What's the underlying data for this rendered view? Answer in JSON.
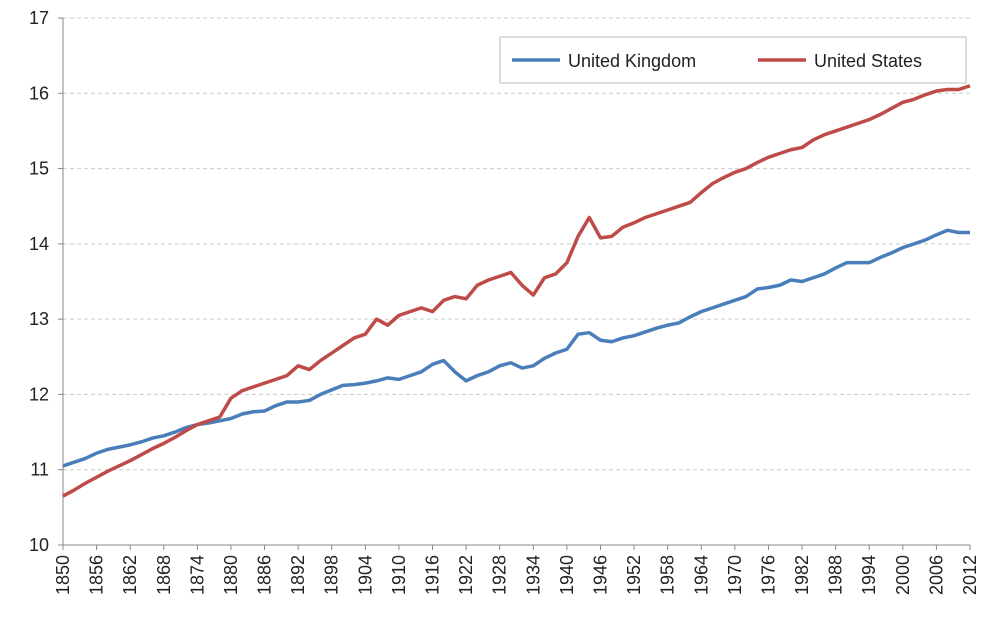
{
  "chart_data": {
    "type": "line",
    "x": [
      1850,
      1852,
      1854,
      1856,
      1858,
      1860,
      1862,
      1864,
      1866,
      1868,
      1870,
      1872,
      1874,
      1876,
      1878,
      1880,
      1882,
      1884,
      1886,
      1888,
      1890,
      1892,
      1894,
      1896,
      1898,
      1900,
      1902,
      1904,
      1906,
      1908,
      1910,
      1912,
      1914,
      1916,
      1918,
      1920,
      1922,
      1924,
      1926,
      1928,
      1930,
      1932,
      1934,
      1936,
      1938,
      1940,
      1942,
      1944,
      1946,
      1948,
      1950,
      1952,
      1954,
      1956,
      1958,
      1960,
      1962,
      1964,
      1966,
      1968,
      1970,
      1972,
      1974,
      1976,
      1978,
      1980,
      1982,
      1984,
      1986,
      1988,
      1990,
      1992,
      1994,
      1996,
      1998,
      2000,
      2002,
      2004,
      2006,
      2008,
      2010,
      2012
    ],
    "series": [
      {
        "name": "United Kingdom",
        "color": "#4a7ebb",
        "values": [
          11.05,
          11.1,
          11.15,
          11.22,
          11.27,
          11.3,
          11.33,
          11.37,
          11.42,
          11.45,
          11.5,
          11.56,
          11.6,
          11.62,
          11.65,
          11.68,
          11.74,
          11.77,
          11.78,
          11.85,
          11.9,
          11.9,
          11.92,
          12.0,
          12.06,
          12.12,
          12.13,
          12.15,
          12.18,
          12.22,
          12.2,
          12.25,
          12.3,
          12.4,
          12.45,
          12.3,
          12.18,
          12.25,
          12.3,
          12.38,
          12.42,
          12.35,
          12.38,
          12.48,
          12.55,
          12.6,
          12.8,
          12.82,
          12.72,
          12.7,
          12.75,
          12.78,
          12.83,
          12.88,
          12.92,
          12.95,
          13.03,
          13.1,
          13.15,
          13.2,
          13.25,
          13.3,
          13.4,
          13.42,
          13.45,
          13.52,
          13.5,
          13.55,
          13.6,
          13.68,
          13.75,
          13.75,
          13.75,
          13.82,
          13.88,
          13.95,
          14.0,
          14.05,
          14.12,
          14.18,
          14.15,
          14.15
        ]
      },
      {
        "name": "United States",
        "color": "#be4b48",
        "values": [
          10.65,
          10.73,
          10.82,
          10.9,
          10.98,
          11.05,
          11.12,
          11.2,
          11.28,
          11.35,
          11.43,
          11.52,
          11.6,
          11.65,
          11.7,
          11.95,
          12.05,
          12.1,
          12.15,
          12.2,
          12.25,
          12.38,
          12.33,
          12.45,
          12.55,
          12.65,
          12.75,
          12.8,
          13.0,
          12.92,
          13.05,
          13.1,
          13.15,
          13.1,
          13.25,
          13.3,
          13.27,
          13.45,
          13.52,
          13.57,
          13.62,
          13.45,
          13.32,
          13.55,
          13.6,
          13.75,
          14.1,
          14.35,
          14.08,
          14.1,
          14.22,
          14.28,
          14.35,
          14.4,
          14.45,
          14.5,
          14.55,
          14.68,
          14.8,
          14.88,
          14.95,
          15.0,
          15.08,
          15.15,
          15.2,
          15.25,
          15.28,
          15.38,
          15.45,
          15.5,
          15.55,
          15.6,
          15.65,
          15.72,
          15.8,
          15.88,
          15.92,
          15.98,
          16.03,
          16.05,
          16.05,
          16.1
        ]
      }
    ],
    "xlim": [
      1850,
      2012
    ],
    "xticks": [
      1850,
      1856,
      1862,
      1868,
      1874,
      1880,
      1886,
      1892,
      1898,
      1904,
      1910,
      1916,
      1922,
      1928,
      1934,
      1940,
      1946,
      1952,
      1958,
      1964,
      1970,
      1976,
      1982,
      1988,
      1994,
      2000,
      2006,
      2012
    ],
    "ylim": [
      10,
      17
    ],
    "yticks": [
      10,
      11,
      12,
      13,
      14,
      15,
      16,
      17
    ],
    "grid": true,
    "legend": "top-right"
  }
}
